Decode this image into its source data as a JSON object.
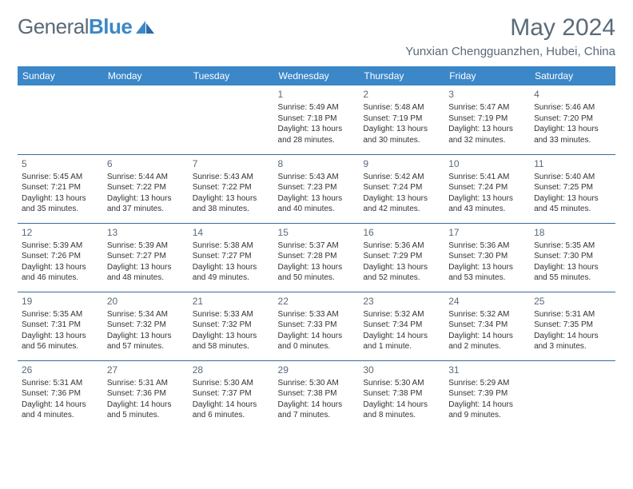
{
  "brand": {
    "general": "General",
    "blue": "Blue"
  },
  "title": "May 2024",
  "location": "Yunxian Chengguanzhen, Hubei, China",
  "colors": {
    "accent": "#3b87c8",
    "heading": "#5a6a78",
    "rule": "#3b6a9a"
  },
  "day_headers": [
    "Sunday",
    "Monday",
    "Tuesday",
    "Wednesday",
    "Thursday",
    "Friday",
    "Saturday"
  ],
  "weeks": [
    [
      null,
      null,
      null,
      {
        "n": "1",
        "sr": "Sunrise: 5:49 AM",
        "ss": "Sunset: 7:18 PM",
        "dl": "Daylight: 13 hours and 28 minutes."
      },
      {
        "n": "2",
        "sr": "Sunrise: 5:48 AM",
        "ss": "Sunset: 7:19 PM",
        "dl": "Daylight: 13 hours and 30 minutes."
      },
      {
        "n": "3",
        "sr": "Sunrise: 5:47 AM",
        "ss": "Sunset: 7:19 PM",
        "dl": "Daylight: 13 hours and 32 minutes."
      },
      {
        "n": "4",
        "sr": "Sunrise: 5:46 AM",
        "ss": "Sunset: 7:20 PM",
        "dl": "Daylight: 13 hours and 33 minutes."
      }
    ],
    [
      {
        "n": "5",
        "sr": "Sunrise: 5:45 AM",
        "ss": "Sunset: 7:21 PM",
        "dl": "Daylight: 13 hours and 35 minutes."
      },
      {
        "n": "6",
        "sr": "Sunrise: 5:44 AM",
        "ss": "Sunset: 7:22 PM",
        "dl": "Daylight: 13 hours and 37 minutes."
      },
      {
        "n": "7",
        "sr": "Sunrise: 5:43 AM",
        "ss": "Sunset: 7:22 PM",
        "dl": "Daylight: 13 hours and 38 minutes."
      },
      {
        "n": "8",
        "sr": "Sunrise: 5:43 AM",
        "ss": "Sunset: 7:23 PM",
        "dl": "Daylight: 13 hours and 40 minutes."
      },
      {
        "n": "9",
        "sr": "Sunrise: 5:42 AM",
        "ss": "Sunset: 7:24 PM",
        "dl": "Daylight: 13 hours and 42 minutes."
      },
      {
        "n": "10",
        "sr": "Sunrise: 5:41 AM",
        "ss": "Sunset: 7:24 PM",
        "dl": "Daylight: 13 hours and 43 minutes."
      },
      {
        "n": "11",
        "sr": "Sunrise: 5:40 AM",
        "ss": "Sunset: 7:25 PM",
        "dl": "Daylight: 13 hours and 45 minutes."
      }
    ],
    [
      {
        "n": "12",
        "sr": "Sunrise: 5:39 AM",
        "ss": "Sunset: 7:26 PM",
        "dl": "Daylight: 13 hours and 46 minutes."
      },
      {
        "n": "13",
        "sr": "Sunrise: 5:39 AM",
        "ss": "Sunset: 7:27 PM",
        "dl": "Daylight: 13 hours and 48 minutes."
      },
      {
        "n": "14",
        "sr": "Sunrise: 5:38 AM",
        "ss": "Sunset: 7:27 PM",
        "dl": "Daylight: 13 hours and 49 minutes."
      },
      {
        "n": "15",
        "sr": "Sunrise: 5:37 AM",
        "ss": "Sunset: 7:28 PM",
        "dl": "Daylight: 13 hours and 50 minutes."
      },
      {
        "n": "16",
        "sr": "Sunrise: 5:36 AM",
        "ss": "Sunset: 7:29 PM",
        "dl": "Daylight: 13 hours and 52 minutes."
      },
      {
        "n": "17",
        "sr": "Sunrise: 5:36 AM",
        "ss": "Sunset: 7:30 PM",
        "dl": "Daylight: 13 hours and 53 minutes."
      },
      {
        "n": "18",
        "sr": "Sunrise: 5:35 AM",
        "ss": "Sunset: 7:30 PM",
        "dl": "Daylight: 13 hours and 55 minutes."
      }
    ],
    [
      {
        "n": "19",
        "sr": "Sunrise: 5:35 AM",
        "ss": "Sunset: 7:31 PM",
        "dl": "Daylight: 13 hours and 56 minutes."
      },
      {
        "n": "20",
        "sr": "Sunrise: 5:34 AM",
        "ss": "Sunset: 7:32 PM",
        "dl": "Daylight: 13 hours and 57 minutes."
      },
      {
        "n": "21",
        "sr": "Sunrise: 5:33 AM",
        "ss": "Sunset: 7:32 PM",
        "dl": "Daylight: 13 hours and 58 minutes."
      },
      {
        "n": "22",
        "sr": "Sunrise: 5:33 AM",
        "ss": "Sunset: 7:33 PM",
        "dl": "Daylight: 14 hours and 0 minutes."
      },
      {
        "n": "23",
        "sr": "Sunrise: 5:32 AM",
        "ss": "Sunset: 7:34 PM",
        "dl": "Daylight: 14 hours and 1 minute."
      },
      {
        "n": "24",
        "sr": "Sunrise: 5:32 AM",
        "ss": "Sunset: 7:34 PM",
        "dl": "Daylight: 14 hours and 2 minutes."
      },
      {
        "n": "25",
        "sr": "Sunrise: 5:31 AM",
        "ss": "Sunset: 7:35 PM",
        "dl": "Daylight: 14 hours and 3 minutes."
      }
    ],
    [
      {
        "n": "26",
        "sr": "Sunrise: 5:31 AM",
        "ss": "Sunset: 7:36 PM",
        "dl": "Daylight: 14 hours and 4 minutes."
      },
      {
        "n": "27",
        "sr": "Sunrise: 5:31 AM",
        "ss": "Sunset: 7:36 PM",
        "dl": "Daylight: 14 hours and 5 minutes."
      },
      {
        "n": "28",
        "sr": "Sunrise: 5:30 AM",
        "ss": "Sunset: 7:37 PM",
        "dl": "Daylight: 14 hours and 6 minutes."
      },
      {
        "n": "29",
        "sr": "Sunrise: 5:30 AM",
        "ss": "Sunset: 7:38 PM",
        "dl": "Daylight: 14 hours and 7 minutes."
      },
      {
        "n": "30",
        "sr": "Sunrise: 5:30 AM",
        "ss": "Sunset: 7:38 PM",
        "dl": "Daylight: 14 hours and 8 minutes."
      },
      {
        "n": "31",
        "sr": "Sunrise: 5:29 AM",
        "ss": "Sunset: 7:39 PM",
        "dl": "Daylight: 14 hours and 9 minutes."
      },
      null
    ]
  ]
}
